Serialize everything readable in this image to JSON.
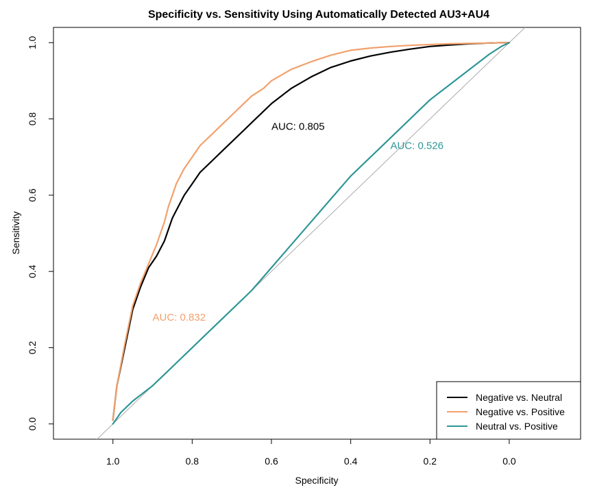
{
  "chart_data": {
    "type": "line",
    "title": "Specificity vs. Sensitivity Using Automatically Detected AU3+AU4",
    "xlabel": "Specificity",
    "ylabel": "Sensitivity",
    "x_reversed": true,
    "xlim": [
      1.15,
      -0.18
    ],
    "ylim": [
      -0.04,
      1.04
    ],
    "x_ticks": [
      "1.0",
      "0.8",
      "0.6",
      "0.4",
      "0.2",
      "0.0"
    ],
    "x_tick_values": [
      1.0,
      0.8,
      0.6,
      0.4,
      0.2,
      0.0
    ],
    "y_ticks": [
      "0.0",
      "0.2",
      "0.4",
      "0.6",
      "0.8",
      "1.0"
    ],
    "y_tick_values": [
      0.0,
      0.2,
      0.4,
      0.6,
      0.8,
      1.0
    ],
    "grid": false,
    "reference_line": {
      "x": [
        1.0,
        0.0
      ],
      "y": [
        0.0,
        1.0
      ],
      "color": "#aaaaaa"
    },
    "legend_position": "bottom-right",
    "series": [
      {
        "name": "Negative vs. Neutral",
        "color": "#000000",
        "auc_label": "AUC: 0.805",
        "x": [
          1.0,
          0.99,
          0.97,
          0.95,
          0.93,
          0.91,
          0.89,
          0.87,
          0.86,
          0.85,
          0.84,
          0.82,
          0.8,
          0.78,
          0.75,
          0.72,
          0.7,
          0.67,
          0.65,
          0.62,
          0.6,
          0.55,
          0.5,
          0.45,
          0.4,
          0.35,
          0.3,
          0.25,
          0.2,
          0.15,
          0.1,
          0.05,
          0.02,
          0.0
        ],
        "y": [
          0.01,
          0.1,
          0.2,
          0.3,
          0.36,
          0.41,
          0.44,
          0.48,
          0.51,
          0.54,
          0.56,
          0.6,
          0.63,
          0.66,
          0.69,
          0.72,
          0.74,
          0.77,
          0.79,
          0.82,
          0.84,
          0.88,
          0.91,
          0.935,
          0.952,
          0.965,
          0.975,
          0.983,
          0.99,
          0.994,
          0.997,
          0.999,
          1.0,
          1.0
        ]
      },
      {
        "name": "Negative vs. Positive",
        "color": "#f2a06b",
        "auc_label": "AUC: 0.832",
        "x": [
          1.0,
          0.99,
          0.97,
          0.95,
          0.93,
          0.91,
          0.89,
          0.87,
          0.86,
          0.85,
          0.84,
          0.82,
          0.8,
          0.78,
          0.75,
          0.72,
          0.7,
          0.67,
          0.65,
          0.62,
          0.6,
          0.55,
          0.5,
          0.45,
          0.4,
          0.35,
          0.3,
          0.25,
          0.2,
          0.15,
          0.1,
          0.05,
          0.02,
          0.0
        ],
        "y": [
          0.01,
          0.1,
          0.21,
          0.31,
          0.37,
          0.42,
          0.47,
          0.53,
          0.57,
          0.6,
          0.63,
          0.67,
          0.7,
          0.73,
          0.76,
          0.79,
          0.81,
          0.84,
          0.86,
          0.88,
          0.9,
          0.93,
          0.95,
          0.967,
          0.98,
          0.986,
          0.99,
          0.993,
          0.995,
          0.997,
          0.998,
          0.999,
          1.0,
          1.0
        ]
      },
      {
        "name": "Neutral vs. Positive",
        "color": "#2e9595",
        "auc_label": "AUC: 0.526",
        "x": [
          1.0,
          0.98,
          0.95,
          0.9,
          0.85,
          0.8,
          0.75,
          0.7,
          0.65,
          0.6,
          0.55,
          0.5,
          0.45,
          0.4,
          0.35,
          0.3,
          0.25,
          0.2,
          0.15,
          0.1,
          0.05,
          0.02,
          0.0
        ],
        "y": [
          0.0,
          0.03,
          0.06,
          0.1,
          0.15,
          0.2,
          0.25,
          0.3,
          0.35,
          0.41,
          0.47,
          0.53,
          0.59,
          0.65,
          0.7,
          0.75,
          0.8,
          0.85,
          0.89,
          0.93,
          0.97,
          0.99,
          1.0
        ]
      }
    ]
  }
}
